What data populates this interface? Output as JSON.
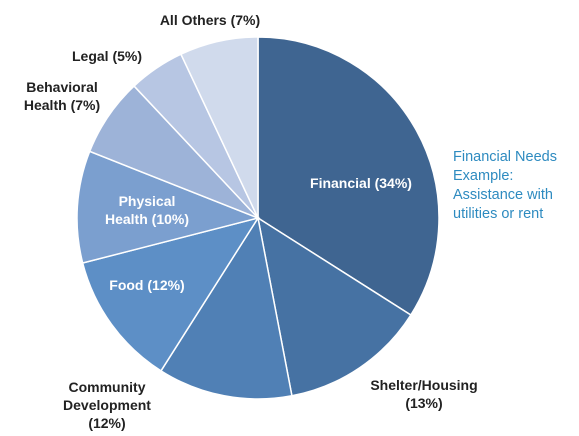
{
  "chart_data": {
    "type": "pie",
    "categories": [
      "Financial",
      "Shelter/Housing",
      "Community Development",
      "Food",
      "Physical Health",
      "Behavioral Health",
      "Legal",
      "All Others"
    ],
    "values": [
      34,
      13,
      12,
      12,
      10,
      7,
      5,
      7
    ],
    "value_labels": [
      "(34%)",
      "(13%)",
      "(12%)",
      "(12%)",
      "(10%)",
      "(7%)",
      "(5%)",
      "(7%)"
    ],
    "colors": [
      "#3f6591",
      "#4672a3",
      "#5080b5",
      "#5d8fc6",
      "#7b9fcf",
      "#9db3d8",
      "#b7c6e3",
      "#d0daec"
    ],
    "annotation": "Financial Needs Example: Assistance with utilities or rent"
  }
}
